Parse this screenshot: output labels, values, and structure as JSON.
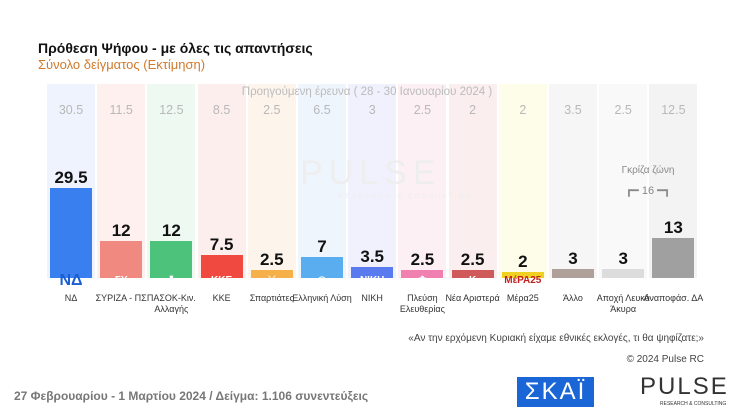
{
  "chart_data": {
    "type": "bar",
    "title": "Πρόθεση Ψήφου - με όλες τις απαντήσεις",
    "subtitle": "Σύνολο δείγματος   (Εκτίμηση)",
    "previous_label": "Προηγούμενη έρευνα ( 28 - 30 Ιανουαρίου 2024 )",
    "categories": [
      "ΝΔ",
      "ΣΥΡΙΖΑ - ΠΣ",
      "ΠΑΣΟΚ-Κιν. Αλλαγής",
      "ΚΚΕ",
      "Σπαρτιάτες",
      "Ελληνική Λύση",
      "ΝΙΚΗ",
      "Πλεύση Ελευθερίας",
      "Νέα Αριστερά",
      "Μέρα25",
      "Άλλο",
      "Αποχή Λευκό Άκυρα",
      "Αναποφάσ. ΔΑ"
    ],
    "series": [
      {
        "name": "Τρέχουσα",
        "values": [
          29.5,
          12,
          12,
          7.5,
          2.5,
          7,
          3.5,
          2.5,
          2.5,
          2,
          3,
          3,
          13
        ],
        "labels": [
          "29.5",
          "12",
          "12",
          "7.5",
          "2.5",
          "7",
          "3.5",
          "2.5",
          "2.5",
          "2",
          "3",
          "3",
          "13"
        ]
      },
      {
        "name": "Προηγούμενη έρευνα",
        "values": [
          30.5,
          11.5,
          12.5,
          8.5,
          2.5,
          6.5,
          3,
          2.5,
          2,
          2,
          3.5,
          2.5,
          12.5
        ],
        "labels": [
          "30.5",
          "11.5",
          "12.5",
          "8.5",
          "2.5",
          "6.5",
          "3",
          "2.5",
          "2",
          "2",
          "3.5",
          "2.5",
          "12.5"
        ]
      }
    ],
    "colors": [
      "#3a7ff0",
      "#f08a80",
      "#4cc27a",
      "#f04a40",
      "#f5b04a",
      "#5aaef0",
      "#5a7af0",
      "#f080b0",
      "#d05a5a",
      "#f0d020",
      "#b0a09a",
      "#dcdcdc",
      "#a0a0a0"
    ],
    "bg_colors": [
      "#eef3fd",
      "#fdf0ee",
      "#eef9f2",
      "#fdeeee",
      "#fdf5ec",
      "#eef5fd",
      "#f0f1fd",
      "#fdf0f5",
      "#fbeeee",
      "#fefde9",
      "#f6f6f6",
      "#f9f9f9",
      "#f3f3f3"
    ],
    "logos": [
      "ΝΔ",
      "ΣΥ",
      "☘",
      "ΚΚΕ",
      "⚔",
      "◎",
      "ΝΙΚΗ",
      "✿",
      "Κ",
      "ΜέΡΑ25",
      "",
      "",
      ""
    ],
    "grey_zone_label": "Γκρίζα ζώνη",
    "grey_zone_value": "16",
    "ylim": [
      0,
      35
    ]
  },
  "watermark": "PULSE",
  "watermark_sub": "RESEARCH & CONSULTING",
  "question": "«Αν την ερχόμενη Κυριακή είχαμε εθνικές εκλογές, τι θα ψηφίζατε;»",
  "copyright": "© 2024 Pulse RC",
  "footer": "27 Φεβρουαρίου - 1 Μαρτίου 2024  /  Δείγμα:  1.106 συνεντεύξεις",
  "skai_logo": "ΣΚΑΪ",
  "pulse_logo": "PULSE",
  "pulse_logo_sub": "RESEARCH & CONSULTING"
}
